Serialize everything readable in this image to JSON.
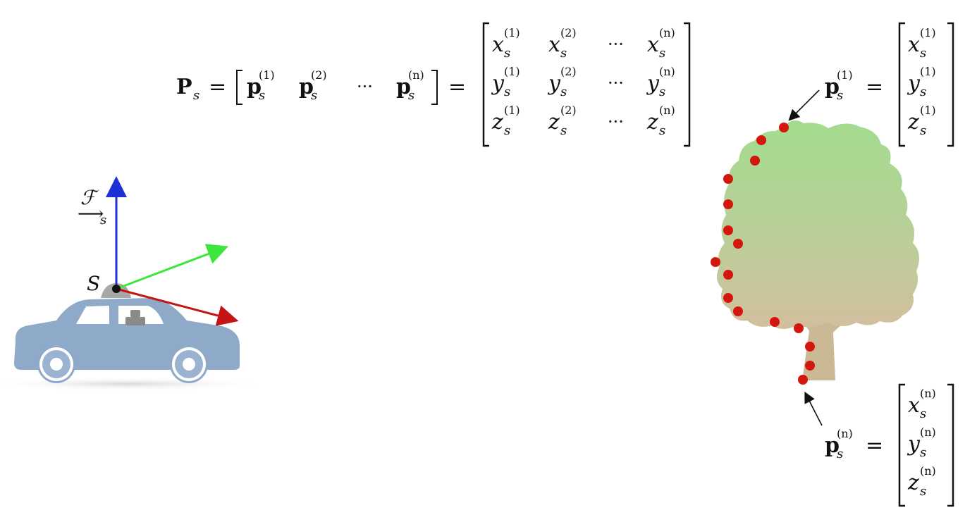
{
  "equation": {
    "lhs_symbol": "P",
    "lhs_sub": "s",
    "equals": "=",
    "row_bracket_entries": [
      {
        "sym": "p",
        "sub": "s",
        "sup": "(1)"
      },
      {
        "sym": "p",
        "sub": "s",
        "sup": "(2)"
      },
      {
        "ellipsis": "···"
      },
      {
        "sym": "p",
        "sub": "s",
        "sup": "(n)"
      }
    ],
    "matrix": [
      [
        {
          "sym": "x",
          "sub": "s",
          "sup": "(1)"
        },
        {
          "sym": "x",
          "sub": "s",
          "sup": "(2)"
        },
        {
          "ellipsis": "···"
        },
        {
          "sym": "x",
          "sub": "s",
          "sup": "(n)"
        }
      ],
      [
        {
          "sym": "y",
          "sub": "s",
          "sup": "(1)"
        },
        {
          "sym": "y",
          "sub": "s",
          "sup": "(2)"
        },
        {
          "ellipsis": "···"
        },
        {
          "sym": "y",
          "sub": "s",
          "sup": "(n)"
        }
      ],
      [
        {
          "sym": "z",
          "sub": "s",
          "sup": "(1)"
        },
        {
          "sym": "z",
          "sub": "s",
          "sup": "(2)"
        },
        {
          "ellipsis": "···"
        },
        {
          "sym": "z",
          "sub": "s",
          "sup": "(n)"
        }
      ]
    ]
  },
  "point_first": {
    "sym": "p",
    "sub": "s",
    "sup": "(1)",
    "equals": "=",
    "vector": [
      {
        "sym": "x",
        "sub": "s",
        "sup": "(1)"
      },
      {
        "sym": "y",
        "sub": "s",
        "sup": "(1)"
      },
      {
        "sym": "z",
        "sub": "s",
        "sup": "(1)"
      }
    ]
  },
  "point_last": {
    "sym": "p",
    "sub": "s",
    "sup": "(n)",
    "equals": "=",
    "vector": [
      {
        "sym": "x",
        "sub": "s",
        "sup": "(n)"
      },
      {
        "sym": "y",
        "sub": "s",
        "sup": "(n)"
      },
      {
        "sym": "z",
        "sub": "s",
        "sup": "(n)"
      }
    ]
  },
  "frame": {
    "symbol": "ℱ",
    "arrow": "⟶",
    "sub": "s",
    "origin_label": "S"
  },
  "colors": {
    "axis_up": "#1f2fd6",
    "axis_forward": "#3ce63a",
    "axis_side": "#c41414",
    "car_body": "#8fa9c8",
    "point": "#d4170e",
    "tree_top": "#a3dc8e",
    "tree_bottom": "#cfbe9c",
    "trunk": "#cbb895"
  }
}
